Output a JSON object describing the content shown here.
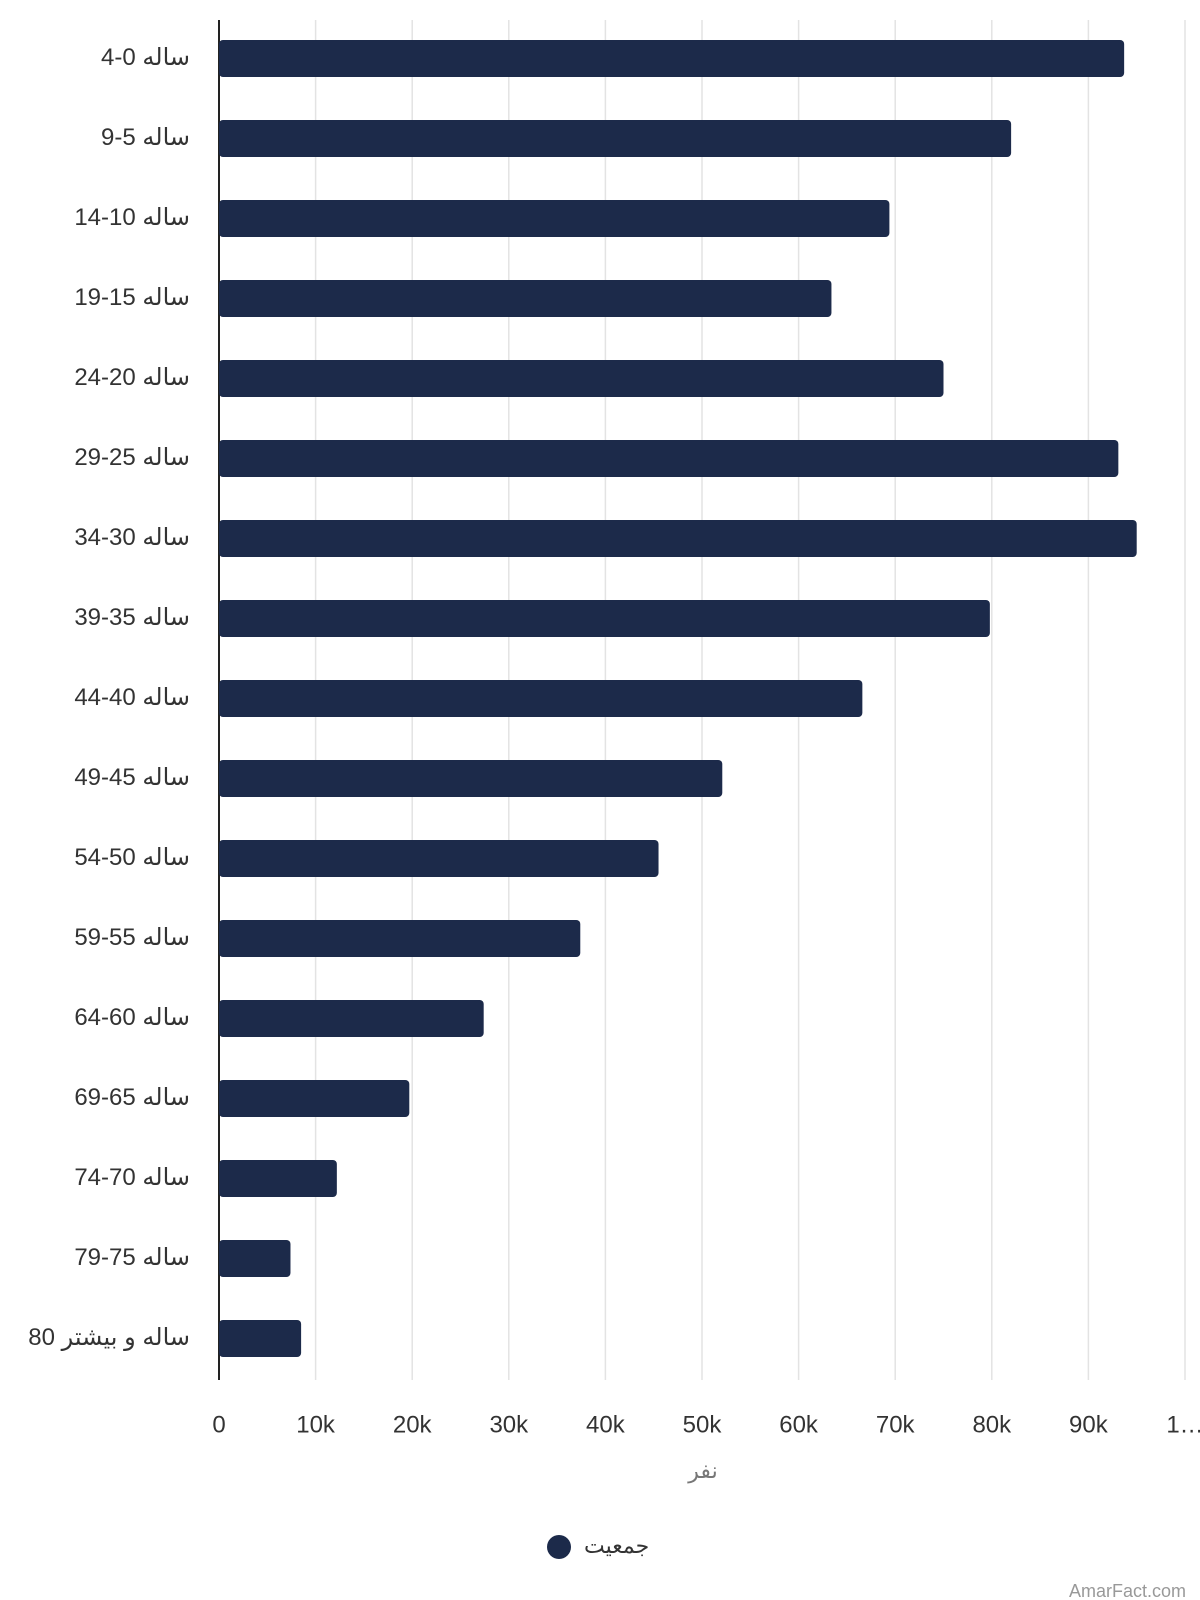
{
  "chart_data": {
    "type": "bar",
    "orientation": "horizontal",
    "categories": [
      "ساله 0-4",
      "ساله 5-9",
      "ساله 10-14",
      "ساله 15-19",
      "ساله 20-24",
      "ساله 25-29",
      "ساله 30-34",
      "ساله 35-39",
      "ساله 40-44",
      "ساله 45-49",
      "ساله 50-54",
      "ساله 55-59",
      "ساله 60-64",
      "ساله 65-69",
      "ساله 70-74",
      "ساله 75-79",
      "ساله و بیشتر 80"
    ],
    "series": [
      {
        "name": "جمعیت",
        "color": "#1c2a4a",
        "values": [
          93700,
          82000,
          69400,
          63400,
          75000,
          93100,
          95000,
          79800,
          66600,
          52100,
          45500,
          37400,
          27400,
          19700,
          12200,
          7400,
          8500
        ]
      }
    ],
    "xlabel": "نفر",
    "xlim": [
      0,
      100000
    ],
    "xticks": [
      0,
      {
        "value": 10000,
        "label": "10k"
      },
      {
        "value": 20000,
        "label": "20k"
      },
      {
        "value": 30000,
        "label": "30k"
      },
      {
        "value": 40000,
        "label": "40k"
      },
      {
        "value": 50000,
        "label": "50k"
      },
      {
        "value": 60000,
        "label": "60k"
      },
      {
        "value": 70000,
        "label": "70k"
      },
      {
        "value": 80000,
        "label": "80k"
      },
      {
        "value": 90000,
        "label": "90k"
      },
      {
        "value": 100000,
        "label": "1…"
      }
    ],
    "grid": true,
    "legend": "bottom",
    "watermark": "AmarFact.com"
  }
}
